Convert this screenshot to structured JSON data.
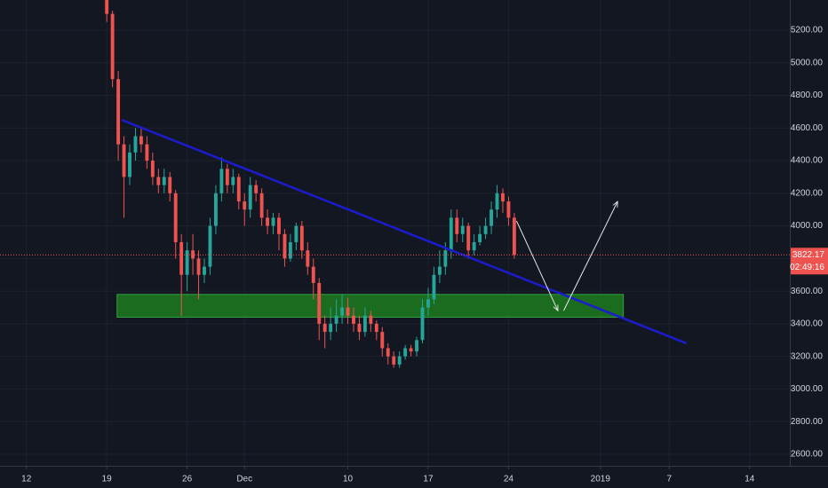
{
  "chart_data": {
    "type": "candlestick",
    "x": [
      7,
      7.5,
      8,
      8.5,
      9,
      9.5,
      10,
      10.5,
      11,
      11.5,
      12,
      12.5,
      13,
      13.5,
      14,
      14.5,
      15,
      15.5,
      16,
      16.5,
      17,
      17.5,
      18,
      18.5,
      19,
      19.5,
      20,
      20.5,
      21,
      21.5,
      22,
      22.5,
      23,
      23.5,
      24,
      24.5,
      25,
      25.5,
      26,
      26.5,
      27,
      27.5,
      28,
      28.5,
      29,
      29.5,
      30,
      30.5,
      31,
      31.5,
      32,
      32.5,
      33,
      33.5,
      34,
      34.5,
      35,
      35.5,
      36,
      36.5,
      37,
      37.5,
      38,
      38.5,
      39,
      39.5,
      40,
      40.5,
      41,
      41.5,
      42,
      42.5
    ],
    "open": [
      5400,
      5300,
      4900,
      4500,
      4300,
      4450,
      4550,
      4500,
      4400,
      4300,
      4250,
      4300,
      4200,
      3900,
      3700,
      3850,
      3800,
      3700,
      3750,
      4000,
      4200,
      4350,
      4250,
      4300,
      4150,
      4100,
      4250,
      4200,
      4050,
      4000,
      4050,
      3950,
      3800,
      3900,
      4000,
      3850,
      3750,
      3650,
      3400,
      3350,
      3400,
      3450,
      3500,
      3450,
      3400,
      3350,
      3450,
      3400,
      3350,
      3250,
      3200,
      3150,
      3200,
      3250,
      3230,
      3300,
      3500,
      3550,
      3700,
      3750,
      3850,
      4050,
      3950,
      4000,
      3850,
      3900,
      3950,
      4000,
      4100,
      4200,
      4150,
      4050
    ],
    "high": [
      5450,
      5320,
      4950,
      4550,
      4500,
      4600,
      4600,
      4550,
      4450,
      4350,
      4350,
      4330,
      4220,
      3950,
      3900,
      3950,
      3850,
      3800,
      4050,
      4250,
      4420,
      4380,
      4350,
      4320,
      4200,
      4300,
      4280,
      4230,
      4100,
      4080,
      4080,
      3980,
      3950,
      4020,
      4030,
      3900,
      3800,
      3680,
      3450,
      3500,
      3550,
      3580,
      3560,
      3500,
      3450,
      3500,
      3480,
      3420,
      3380,
      3280,
      3230,
      3230,
      3270,
      3270,
      3320,
      3550,
      3620,
      3750,
      3850,
      3900,
      4100,
      4100,
      4050,
      4020,
      3950,
      4000,
      4050,
      4150,
      4250,
      4230,
      4180,
      4080
    ],
    "low": [
      5250,
      4850,
      4400,
      4050,
      4250,
      4400,
      4450,
      4350,
      4250,
      4200,
      4200,
      4150,
      3800,
      3450,
      3600,
      3700,
      3550,
      3650,
      3700,
      3950,
      4150,
      4200,
      4200,
      4100,
      4000,
      4050,
      4150,
      4000,
      3950,
      3950,
      3850,
      3750,
      3780,
      3850,
      3800,
      3700,
      3550,
      3300,
      3250,
      3300,
      3350,
      3400,
      3400,
      3350,
      3300,
      3320,
      3350,
      3300,
      3200,
      3150,
      3130,
      3130,
      3180,
      3200,
      3200,
      3280,
      3450,
      3520,
      3650,
      3700,
      3800,
      3900,
      3900,
      3800,
      3820,
      3880,
      3920,
      3950,
      4050,
      4080,
      4000,
      3800
    ],
    "close": [
      5300,
      4900,
      4500,
      4300,
      4450,
      4550,
      4500,
      4400,
      4300,
      4250,
      4300,
      4200,
      3900,
      3700,
      3850,
      3800,
      3700,
      3750,
      4000,
      4200,
      4350,
      4250,
      4300,
      4150,
      4100,
      4250,
      4200,
      4050,
      4000,
      4050,
      3950,
      3800,
      3900,
      4000,
      3850,
      3750,
      3650,
      3400,
      3350,
      3400,
      3450,
      3500,
      3450,
      3400,
      3350,
      3450,
      3400,
      3350,
      3250,
      3200,
      3150,
      3200,
      3250,
      3230,
      3300,
      3500,
      3550,
      3700,
      3750,
      3850,
      4050,
      3950,
      4000,
      3850,
      3900,
      3950,
      4000,
      4100,
      4200,
      4150,
      4050,
      3822
    ],
    "up_color": "#26a69a",
    "down_color": "#ef5350",
    "xlim": [
      -2.3,
      66.5
    ],
    "ylim": [
      2529,
      5385
    ],
    "xticks": [
      {
        "value": 0,
        "label": "12"
      },
      {
        "value": 7,
        "label": "19"
      },
      {
        "value": 14,
        "label": "26"
      },
      {
        "value": 19,
        "label": "Dec"
      },
      {
        "value": 28,
        "label": "10"
      },
      {
        "value": 35,
        "label": "17"
      },
      {
        "value": 42,
        "label": "24"
      },
      {
        "value": 50,
        "label": "2019"
      },
      {
        "value": 56,
        "label": "7"
      },
      {
        "value": 63,
        "label": "14"
      }
    ],
    "yticks": [
      {
        "value": 2600,
        "label": "2600.00"
      },
      {
        "value": 2800,
        "label": "2800.00"
      },
      {
        "value": 3000,
        "label": "3000.00"
      },
      {
        "value": 3200,
        "label": "3200.00"
      },
      {
        "value": 3400,
        "label": "3400.00"
      },
      {
        "value": 3600,
        "label": "3600.00"
      },
      {
        "value": 3800,
        "label": "3800.00"
      },
      {
        "value": 4000,
        "label": "4000.00"
      },
      {
        "value": 4200,
        "label": "4200.00"
      },
      {
        "value": 4400,
        "label": "4400.00"
      },
      {
        "value": 4600,
        "label": "4600.00"
      },
      {
        "value": 4800,
        "label": "4800.00"
      },
      {
        "value": 5000,
        "label": "5000.00"
      },
      {
        "value": 5200,
        "label": "5200.00"
      }
    ],
    "grid": true,
    "last_price": 3822.17,
    "countdown": "02:49:16",
    "price_line_color": "#ef5350",
    "zone": {
      "x": [
        7.9,
        52
      ],
      "y": [
        3440,
        3580
      ],
      "color": "#1e7b1e"
    },
    "trendline": {
      "x": [
        8.3,
        57.5
      ],
      "y": [
        4650,
        3280
      ],
      "color": "#1c1ccf"
    },
    "arrows": {
      "x": [
        42.7,
        46.3,
        46.8,
        51.5
      ],
      "y": [
        4030,
        3480,
        3480,
        4150
      ],
      "color": "#e6e6e6"
    }
  }
}
